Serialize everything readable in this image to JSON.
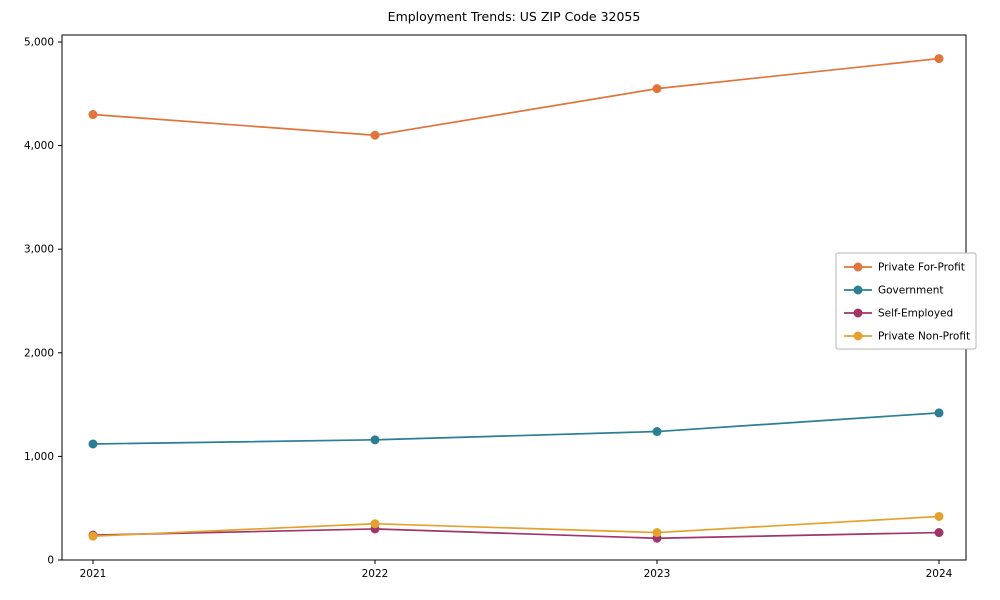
{
  "chart_data": {
    "type": "line",
    "title": "Employment Trends: US ZIP Code 32055",
    "xlabel": "",
    "ylabel": "",
    "x": [
      "2021",
      "2022",
      "2023",
      "2024"
    ],
    "series": [
      {
        "name": "Private For-Profit",
        "color": "#e2733b",
        "values": [
          4300,
          4100,
          4550,
          4840
        ]
      },
      {
        "name": "Government",
        "color": "#2b7e94",
        "values": [
          1120,
          1160,
          1240,
          1420
        ]
      },
      {
        "name": "Self-Employed",
        "color": "#a03569",
        "values": [
          240,
          300,
          210,
          265
        ]
      },
      {
        "name": "Private Non-Profit",
        "color": "#e5a12e",
        "values": [
          230,
          350,
          265,
          420
        ]
      }
    ],
    "ylim": [
      0,
      5000
    ],
    "yticks": [
      0,
      1000,
      2000,
      3000,
      4000,
      5000
    ],
    "ytick_labels": [
      "0",
      "1,000",
      "2,000",
      "3,000",
      "4,000",
      "5,000"
    ],
    "grid": false,
    "legend_position": "right-middle",
    "axis_color": "#000000",
    "legend_border_color": "#b5b5b5"
  }
}
